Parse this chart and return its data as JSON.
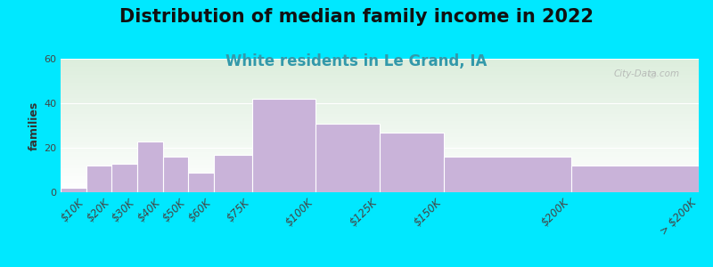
{
  "title": "Distribution of median family income in 2022",
  "subtitle": "White residents in Le Grand, IA",
  "ylabel": "families",
  "categories": [
    "$10K",
    "$20K",
    "$30K",
    "$40K",
    "$50K",
    "$60K",
    "$75K",
    "$100K",
    "$125K",
    "$150K",
    "$200K",
    "> $200K"
  ],
  "values": [
    2,
    12,
    13,
    23,
    16,
    9,
    17,
    42,
    31,
    27,
    16,
    12
  ],
  "bin_edges": [
    0,
    10,
    20,
    30,
    40,
    50,
    60,
    75,
    100,
    125,
    150,
    200,
    250
  ],
  "tick_positions": [
    10,
    20,
    30,
    40,
    50,
    60,
    75,
    100,
    125,
    150,
    200,
    250
  ],
  "bar_color": "#c9b3d9",
  "bar_edge_color": "#ffffff",
  "ylim": [
    0,
    60
  ],
  "yticks": [
    0,
    20,
    40,
    60
  ],
  "background_outer": "#00e8ff",
  "title_fontsize": 15,
  "subtitle_fontsize": 12,
  "subtitle_color": "#3399aa",
  "watermark": "City-Data.com",
  "ylabel_fontsize": 9
}
